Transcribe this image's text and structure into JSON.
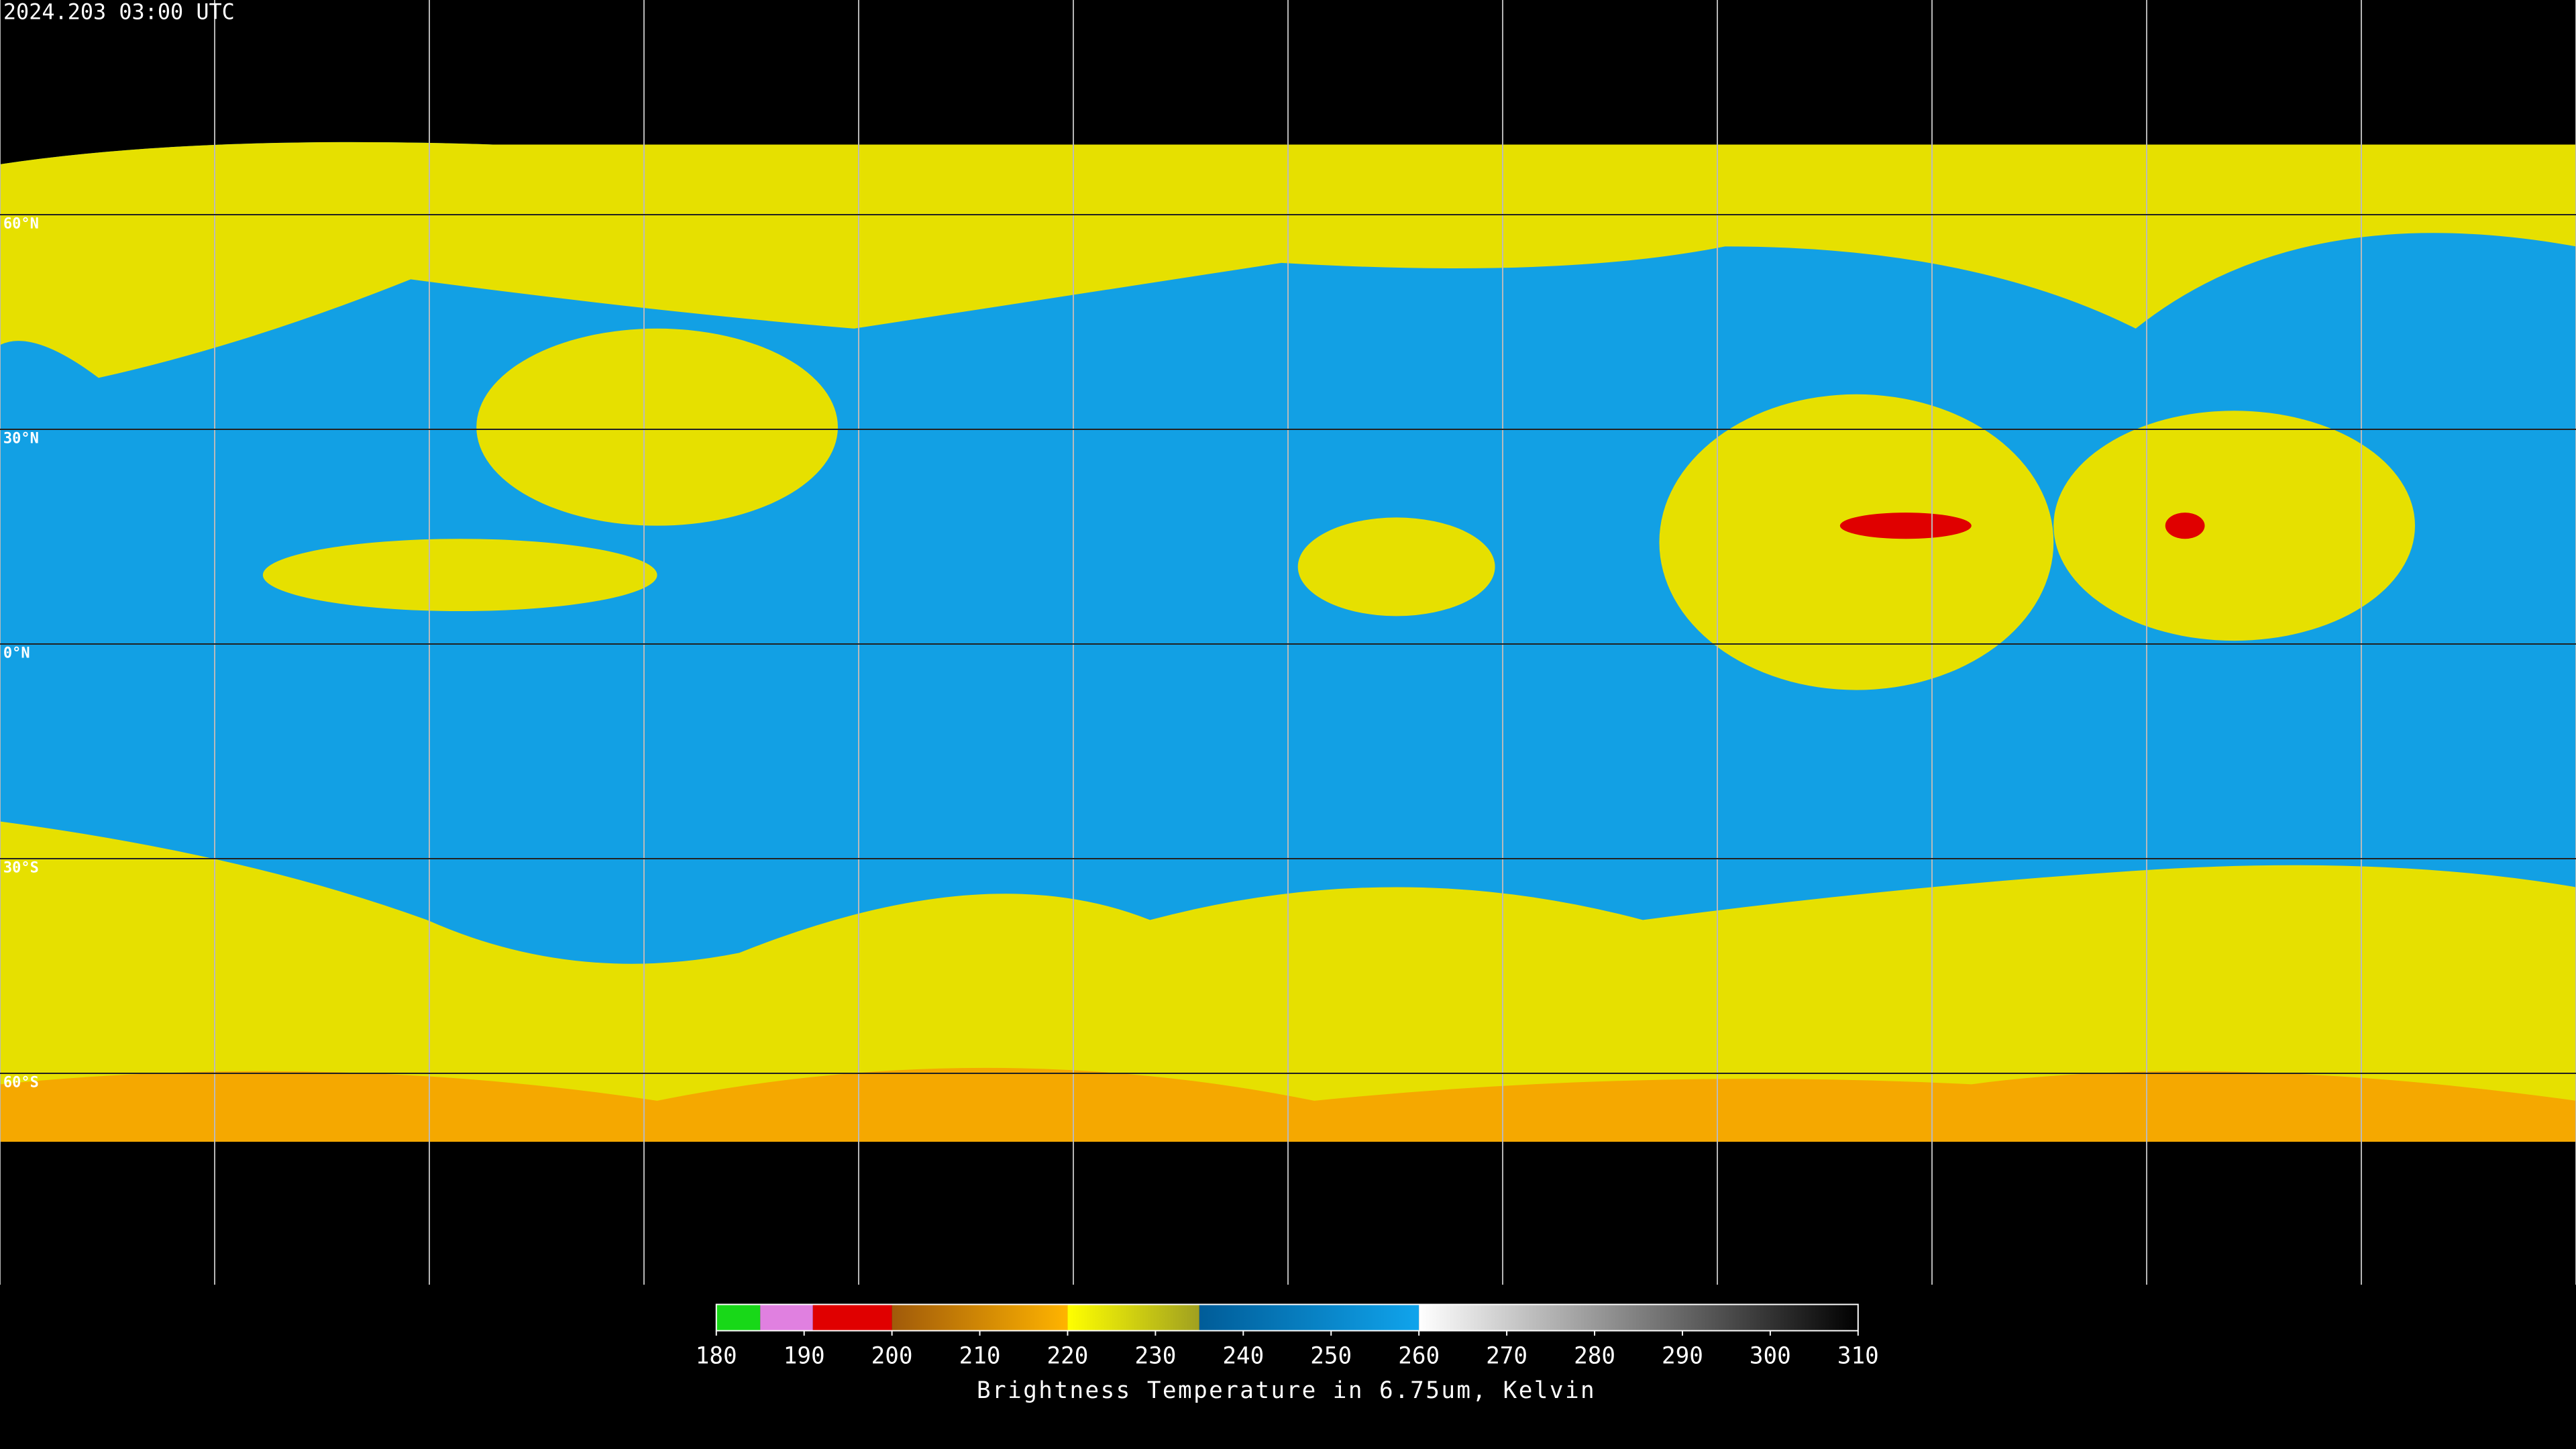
{
  "header": {
    "timestamp": "2024.203 03:00 UTC"
  },
  "map": {
    "lat_ticks": [
      {
        "value": 60,
        "label": "60°N"
      },
      {
        "value": 30,
        "label": "30°N"
      },
      {
        "value": 0,
        "label": "0°N"
      },
      {
        "value": -30,
        "label": "30°S"
      },
      {
        "value": -60,
        "label": "60°S"
      }
    ],
    "lat_range": [
      90,
      -90
    ]
  },
  "colorbar": {
    "range": [
      180,
      310
    ],
    "ticks": [
      180,
      190,
      200,
      210,
      220,
      230,
      240,
      250,
      260,
      270,
      280,
      290,
      300,
      310
    ],
    "label": "Brightness Temperature in 6.75um, Kelvin",
    "segments": [
      {
        "from": 180,
        "to": 185,
        "colors": [
          "#18d818",
          "#18d818"
        ]
      },
      {
        "from": 185,
        "to": 191,
        "colors": [
          "#e080e0",
          "#e080e0"
        ]
      },
      {
        "from": 191,
        "to": 200,
        "colors": [
          "#e00000",
          "#e00000"
        ]
      },
      {
        "from": 200,
        "to": 220,
        "colors": [
          "#a05a0a",
          "#ffb400"
        ]
      },
      {
        "from": 220,
        "to": 235,
        "colors": [
          "#ffff00",
          "#a0a020"
        ]
      },
      {
        "from": 235,
        "to": 260,
        "colors": [
          "#005c98",
          "#10a4ec"
        ]
      },
      {
        "from": 260,
        "to": 310,
        "colors": [
          "#ffffff",
          "#000000"
        ]
      }
    ]
  }
}
